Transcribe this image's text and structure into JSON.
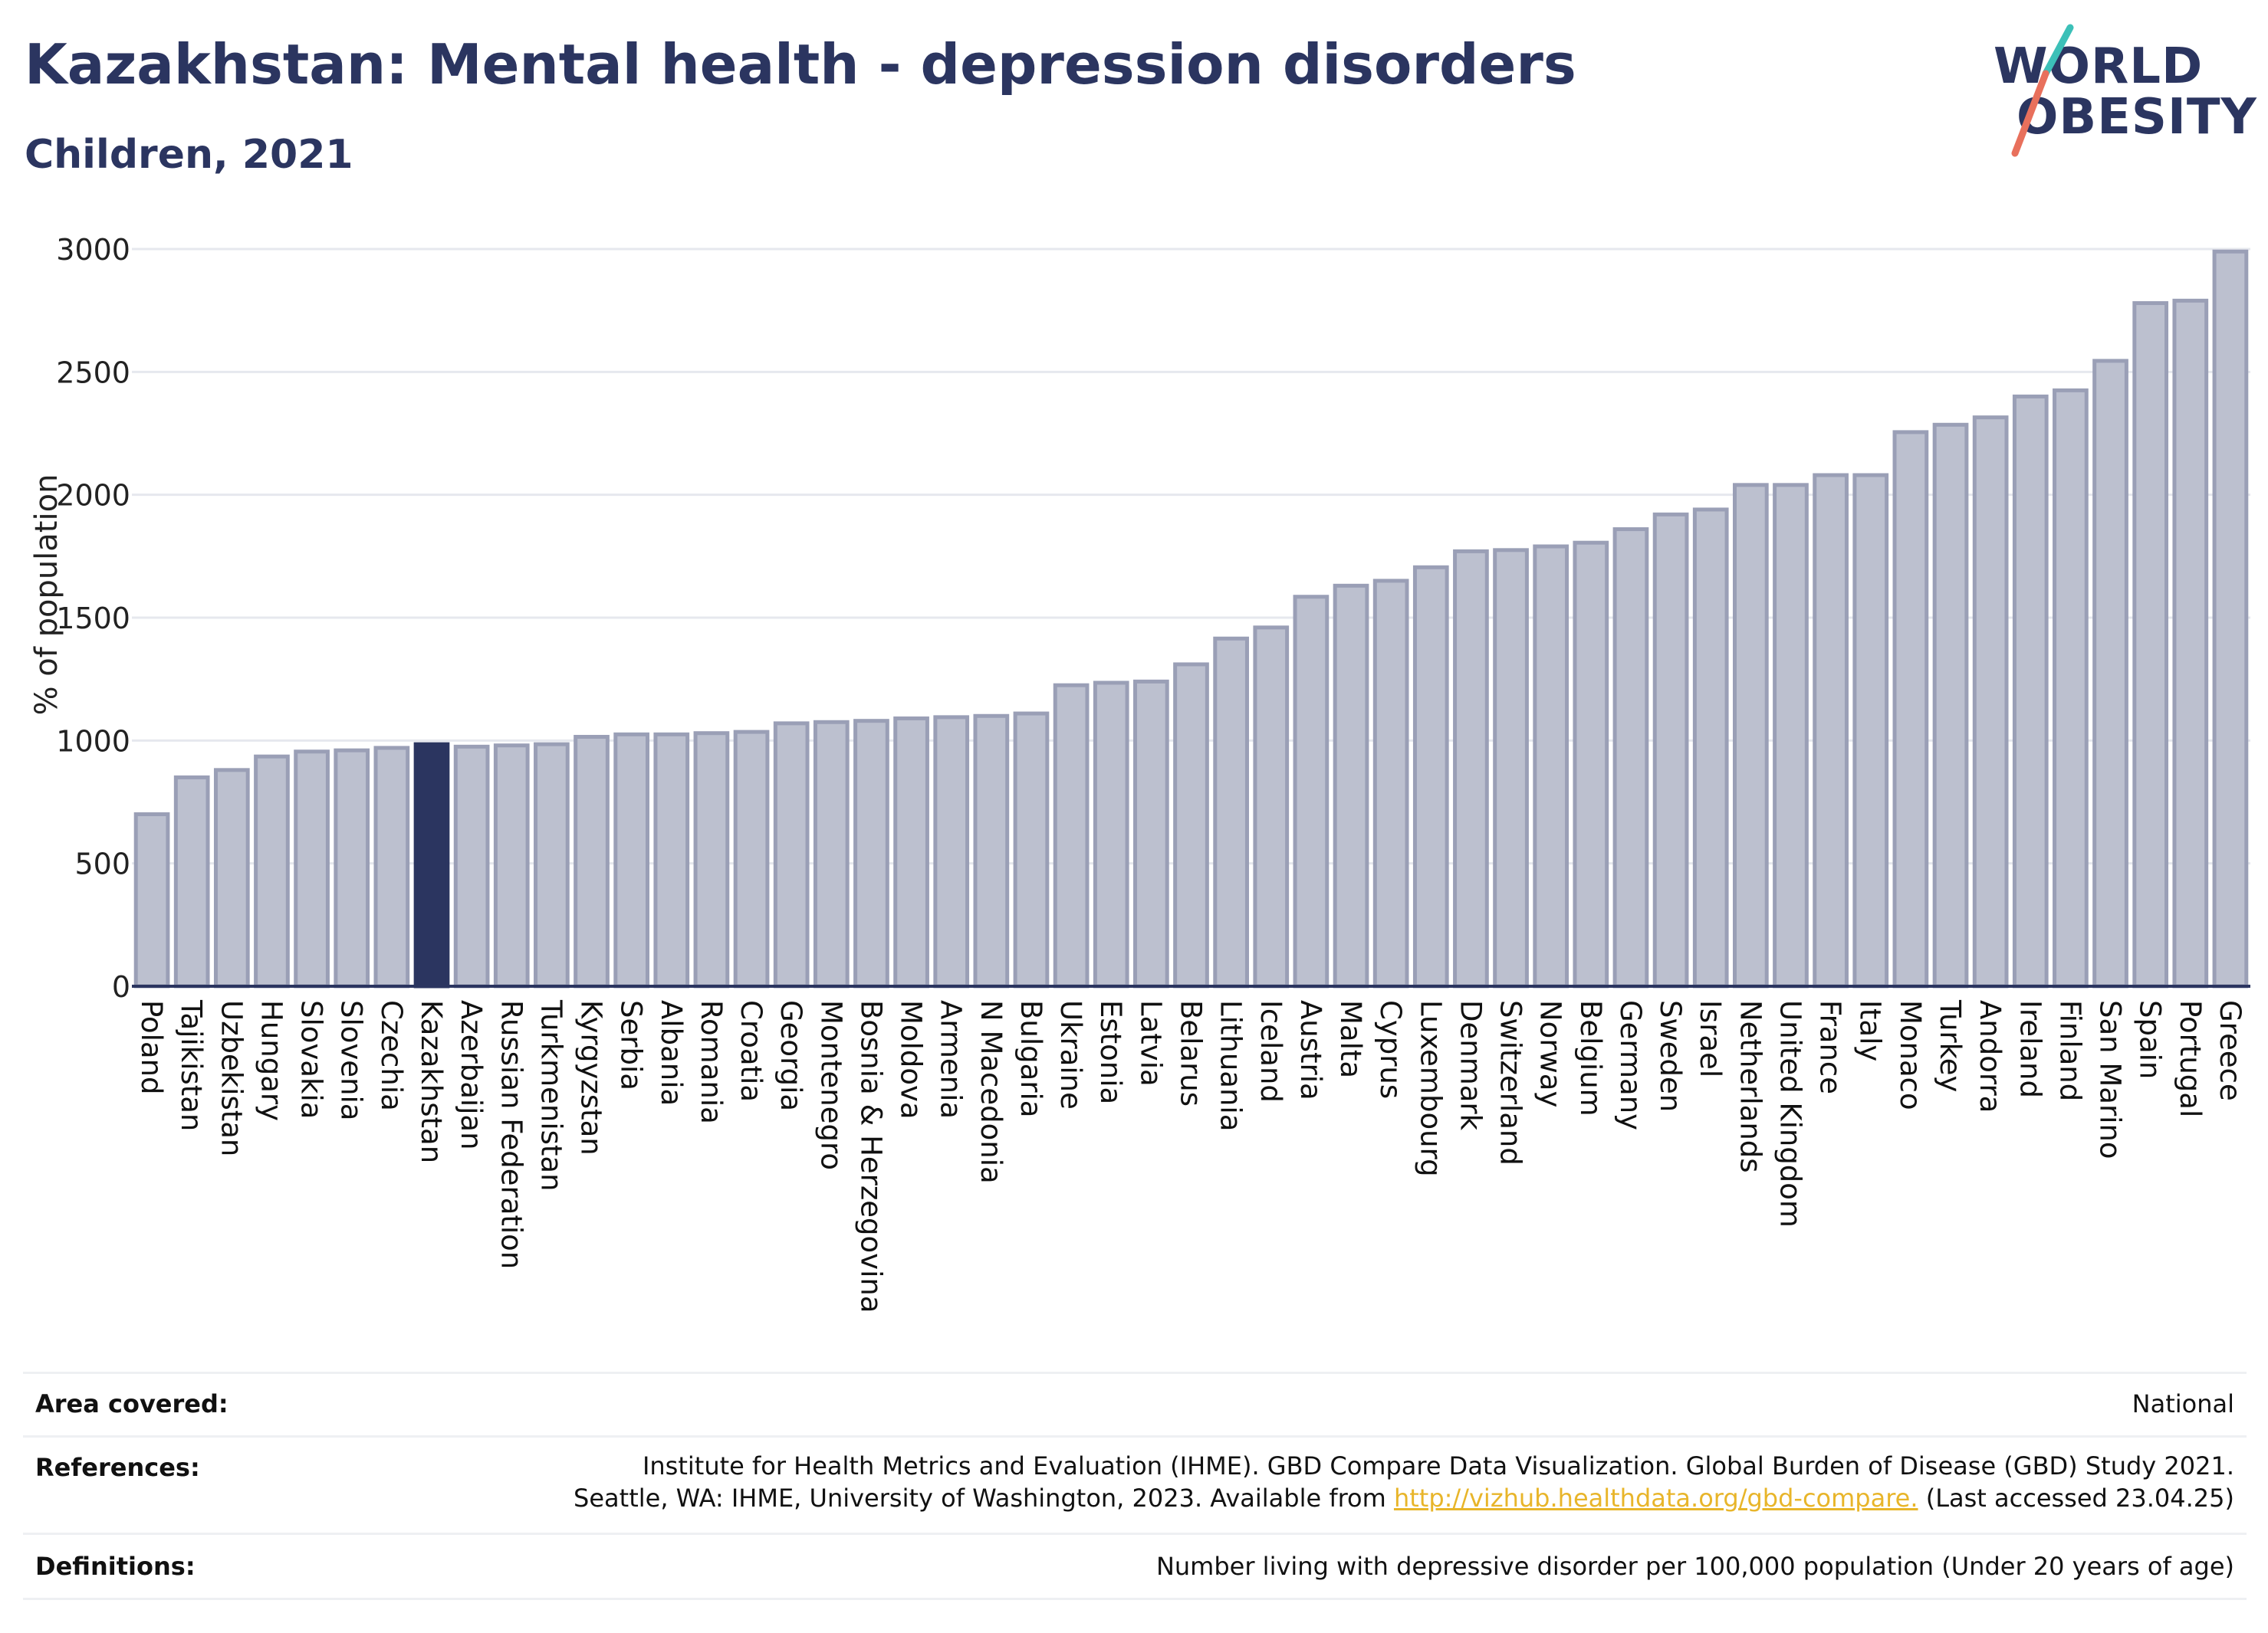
{
  "title": "Kazakhstan: Mental health - depression disorders",
  "subtitle": "Children, 2021",
  "logo": {
    "line1": "WORLD",
    "line2": "OBESITY"
  },
  "colors": {
    "highlight": "#2b3560",
    "bar": "#bcc0cf",
    "bar_outline": "#9a9fb6",
    "axis": "#2b3560",
    "grid": "#e6e8ee",
    "link": "#e8b52a",
    "logo_slash_teal": "#3cc0b8",
    "logo_slash_coral": "#e8705c"
  },
  "chart_data": {
    "type": "bar",
    "ylabel": "% of population",
    "ylim": [
      0,
      3000
    ],
    "yticks": [
      0,
      500,
      1000,
      1500,
      2000,
      2500,
      3000
    ],
    "highlight": "Kazakhstan",
    "grid": true,
    "categories": [
      "Poland",
      "Tajikistan",
      "Uzbekistan",
      "Hungary",
      "Slovakia",
      "Slovenia",
      "Czechia",
      "Kazakhstan",
      "Azerbaijan",
      "Russian Federation",
      "Turkmenistan",
      "Kyrgyzstan",
      "Serbia",
      "Albania",
      "Romania",
      "Croatia",
      "Georgia",
      "Montenegro",
      "Bosnia & Herzegovina",
      "Moldova",
      "Armenia",
      "N Macedonia",
      "Bulgaria",
      "Ukraine",
      "Estonia",
      "Latvia",
      "Belarus",
      "Lithuania",
      "Iceland",
      "Austria",
      "Malta",
      "Cyprus",
      "Luxembourg",
      "Denmark",
      "Switzerland",
      "Norway",
      "Belgium",
      "Germany",
      "Sweden",
      "Israel",
      "Netherlands",
      "United Kingdom",
      "France",
      "Italy",
      "Monaco",
      "Turkey",
      "Andorra",
      "Ireland",
      "Finland",
      "San Marino",
      "Spain",
      "Portugal",
      "Greece"
    ],
    "values": [
      700,
      850,
      880,
      935,
      955,
      960,
      970,
      985,
      975,
      980,
      985,
      1015,
      1025,
      1025,
      1030,
      1035,
      1070,
      1075,
      1080,
      1090,
      1095,
      1100,
      1110,
      1225,
      1235,
      1240,
      1310,
      1415,
      1460,
      1585,
      1630,
      1650,
      1705,
      1770,
      1775,
      1790,
      1805,
      1860,
      1920,
      1940,
      2040,
      2040,
      2080,
      2080,
      2255,
      2285,
      2315,
      2400,
      2425,
      2545,
      2780,
      2790,
      2990
    ]
  },
  "footer": {
    "area_label": "Area covered:",
    "area_value": "National",
    "references_label": "References:",
    "references_line1": "Institute for Health Metrics and Evaluation (IHME). GBD Compare Data Visualization. Global Burden of Disease (GBD) Study 2021.",
    "references_line2_prefix": "Seattle, WA: IHME, University of Washington, 2023. Available from ",
    "references_link": "http://vizhub.healthdata.org/gbd-compare.",
    "references_line2_suffix": " (Last accessed 23.04.25)",
    "definitions_label": "Definitions:",
    "definitions_value": "Number living with depressive disorder per 100,000 population (Under 20 years of age)"
  }
}
